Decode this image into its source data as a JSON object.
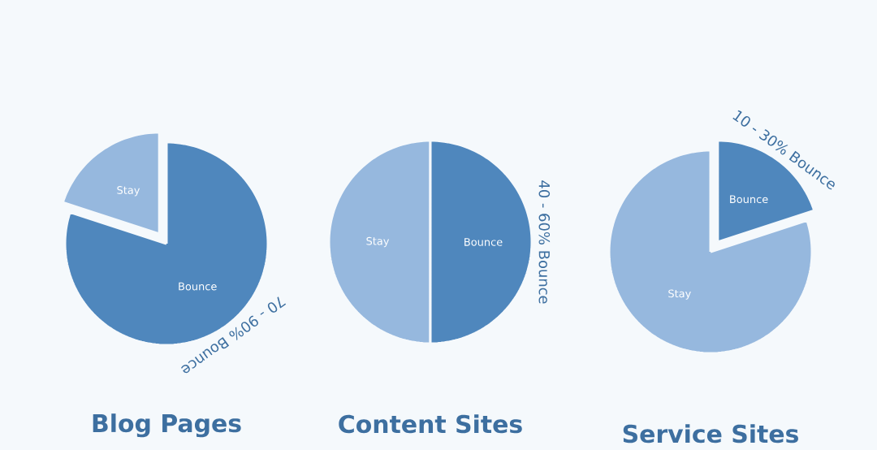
{
  "chart_data": [
    {
      "type": "pie",
      "title": "Blog Pages",
      "categories": [
        "Bounce",
        "Stay"
      ],
      "values": [
        80,
        20
      ],
      "colors": [
        "#4f87bd",
        "#96b8de"
      ],
      "annotations": [
        "70 - 90% Bounce"
      ]
    },
    {
      "type": "pie",
      "title": "Content Sites",
      "categories": [
        "Bounce",
        "Stay"
      ],
      "values": [
        50,
        50
      ],
      "colors": [
        "#4f87bd",
        "#96b8de"
      ],
      "annotations": [
        "40 - 60% Bounce"
      ]
    },
    {
      "type": "pie",
      "title": "Service Sites",
      "categories": [
        "Bounce",
        "Stay"
      ],
      "values": [
        20,
        80
      ],
      "colors": [
        "#4f87bd",
        "#96b8de"
      ],
      "annotations": [
        "10 - 30% Bounce"
      ]
    }
  ]
}
